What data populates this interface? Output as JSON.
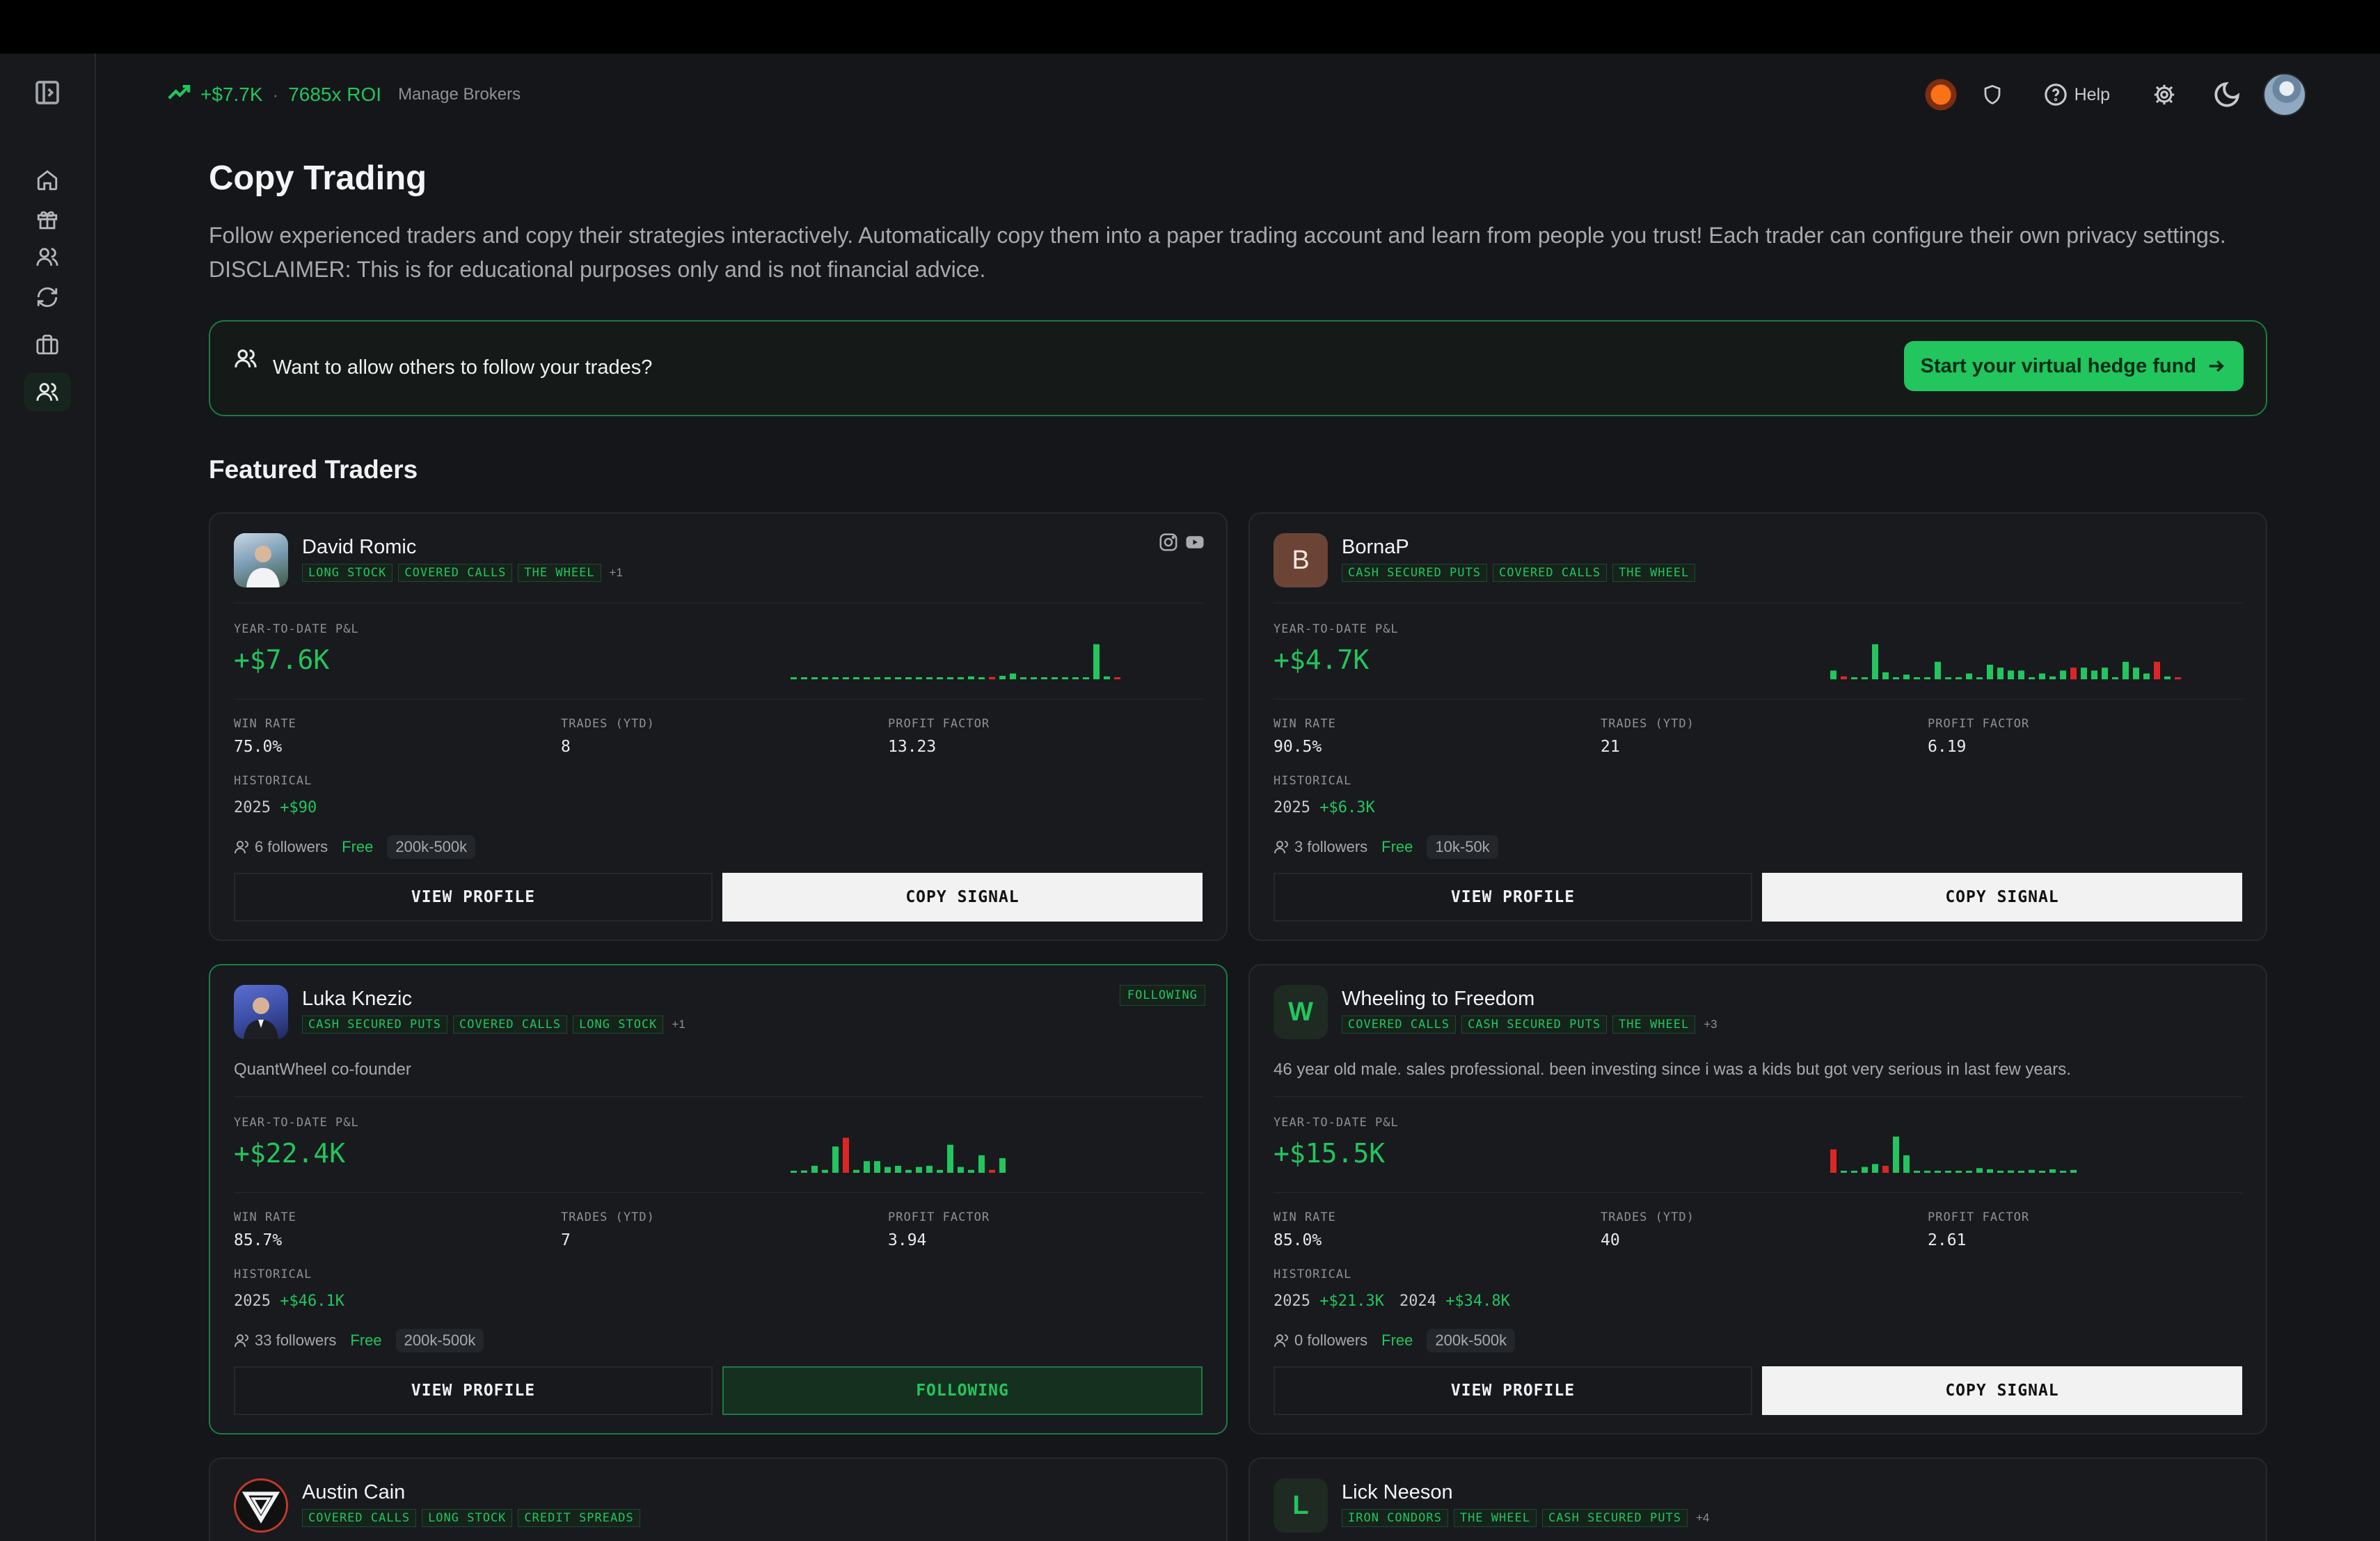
{
  "header": {
    "pnl": "+$7.7K",
    "roi": "7685x ROI",
    "manage_brokers": "Manage Brokers",
    "help": "Help"
  },
  "page": {
    "title": "Copy Trading",
    "description": "Follow experienced traders and copy their strategies interactively. Automatically copy them into a paper trading account and learn from people you trust! Each trader can configure their own privacy settings. DISCLAIMER: This is for educational purposes only and is not financial advice."
  },
  "cta": {
    "text": "Want to allow others to follow your trades?",
    "button": "Start your virtual hedge fund"
  },
  "section_title": "Featured Traders",
  "labels": {
    "ytd": "YEAR-TO-DATE P&L",
    "win_rate": "WIN RATE",
    "trades": "TRADES (YTD)",
    "profit_factor": "PROFIT FACTOR",
    "historical": "HISTORICAL",
    "view_profile": "VIEW PROFILE",
    "copy_signal": "COPY SIGNAL",
    "following": "FOLLOWING",
    "following_badge": "FOLLOWING"
  },
  "traders": [
    {
      "name": "David Romic",
      "tags": [
        "LONG STOCK",
        "COVERED CALLS",
        "THE WHEEL"
      ],
      "more": "+1",
      "ytd": "+$7.6K",
      "win_rate": "75.0%",
      "trades": "8",
      "profit_factor": "13.23",
      "hist": [
        {
          "year": "2025",
          "val": "+$90"
        }
      ],
      "followers": "6 followers",
      "price": "Free",
      "range": "200k-500k",
      "bars": [
        0.02,
        0.02,
        0.02,
        0.02,
        0.02,
        0.02,
        0.02,
        0.02,
        0.02,
        0.02,
        0.02,
        0.02,
        0.02,
        0.02,
        0.02,
        0.02,
        0.03,
        0.05,
        0.02,
        -0.04,
        0.06,
        0.1,
        0.02,
        0.02,
        0.02,
        0.02,
        0.02,
        0.02,
        0.03,
        0.6,
        0.05,
        -0.03
      ]
    },
    {
      "name": "BornaP",
      "initial": "B",
      "tags": [
        "CASH SECURED PUTS",
        "COVERED CALLS",
        "THE WHEEL"
      ],
      "more": "",
      "ytd": "+$4.7K",
      "win_rate": "90.5%",
      "trades": "21",
      "profit_factor": "6.19",
      "hist": [
        {
          "year": "2025",
          "val": "+$6.3K"
        }
      ],
      "followers": "3 followers",
      "price": "Free",
      "range": "10k-50k",
      "bars": [
        0.15,
        -0.05,
        0.02,
        0.02,
        0.6,
        0.12,
        0.02,
        0.08,
        0.02,
        0.02,
        0.3,
        0.02,
        0.02,
        0.1,
        0.02,
        0.25,
        0.2,
        0.15,
        0.15,
        0.02,
        0.1,
        0.05,
        0.15,
        -0.2,
        0.2,
        0.15,
        0.2,
        0.02,
        0.3,
        0.2,
        0.1,
        -0.3,
        0.05,
        -0.03
      ]
    },
    {
      "name": "Luka Knezic",
      "tags": [
        "CASH SECURED PUTS",
        "COVERED CALLS",
        "LONG STOCK"
      ],
      "more": "+1",
      "bio": "QuantWheel co-founder",
      "ytd": "+$22.4K",
      "win_rate": "85.7%",
      "trades": "7",
      "profit_factor": "3.94",
      "hist": [
        {
          "year": "2025",
          "val": "+$46.1K"
        }
      ],
      "followers": "33 followers",
      "price": "Free",
      "range": "200k-500k",
      "bars": [
        0.03,
        0.04,
        0.12,
        0.05,
        0.45,
        -0.6,
        0.05,
        0.2,
        0.2,
        0.1,
        0.12,
        0.05,
        0.1,
        0.12,
        0.05,
        0.48,
        0.1,
        0.05,
        0.3,
        -0.05,
        0.25
      ]
    },
    {
      "name": "Wheeling to Freedom",
      "initial": "W",
      "tags": [
        "COVERED CALLS",
        "CASH SECURED PUTS",
        "THE WHEEL"
      ],
      "more": "+3",
      "bio": "46 year old male. sales professional. been investing since i was a kids but got very serious in last few years.",
      "ytd": "+$15.5K",
      "win_rate": "85.0%",
      "trades": "40",
      "profit_factor": "2.61",
      "hist": [
        {
          "year": "2025",
          "val": "+$21.3K"
        },
        {
          "year": "2024",
          "val": "+$34.8K"
        }
      ],
      "followers": "0 followers",
      "price": "Free",
      "range": "200k-500k",
      "bars": [
        -0.4,
        0.02,
        0.02,
        0.1,
        0.15,
        -0.12,
        0.62,
        0.3,
        0.03,
        0.02,
        0.02,
        0.02,
        0.02,
        0.02,
        0.08,
        0.06,
        0.02,
        0.04,
        0.02,
        0.05,
        0.03,
        0.06,
        0.02,
        0.05
      ]
    },
    {
      "name": "Austin Cain",
      "tags": [
        "COVERED CALLS",
        "LONG STOCK",
        "CREDIT SPREADS"
      ],
      "more": ""
    },
    {
      "name": "Lick Neeson",
      "initial": "L",
      "tags": [
        "IRON CONDORS",
        "THE WHEEL",
        "CASH SECURED PUTS"
      ],
      "more": "+4"
    }
  ],
  "colors": {
    "accent": "#22c55e",
    "loss": "#dc2626",
    "bg": "#14161a"
  }
}
